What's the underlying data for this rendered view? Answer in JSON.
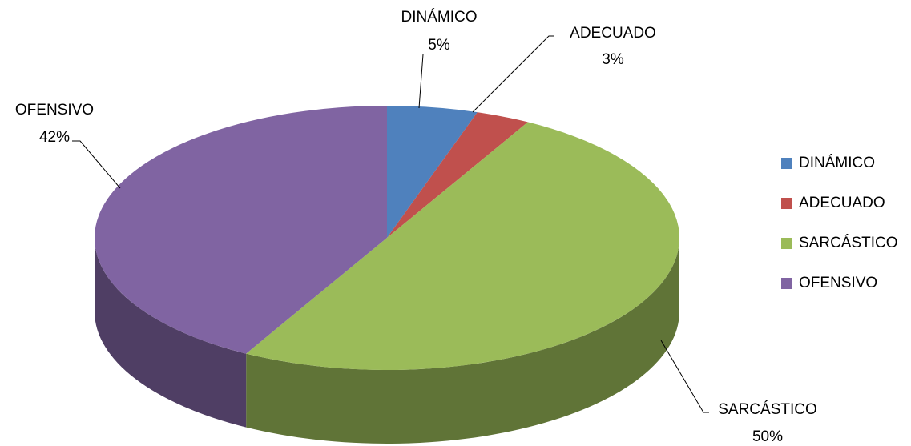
{
  "chart_data": {
    "type": "pie",
    "categories": [
      "DINÁMICO",
      "ADECUADO",
      "SARCÁSTICO",
      "OFENSIVO"
    ],
    "values": [
      5,
      3,
      50,
      42
    ],
    "value_labels": [
      "5%",
      "3%",
      "50%",
      "42%"
    ],
    "colors": [
      "#4f81bd",
      "#c0504d",
      "#9bbb59",
      "#8064a2"
    ],
    "legend": "right"
  }
}
